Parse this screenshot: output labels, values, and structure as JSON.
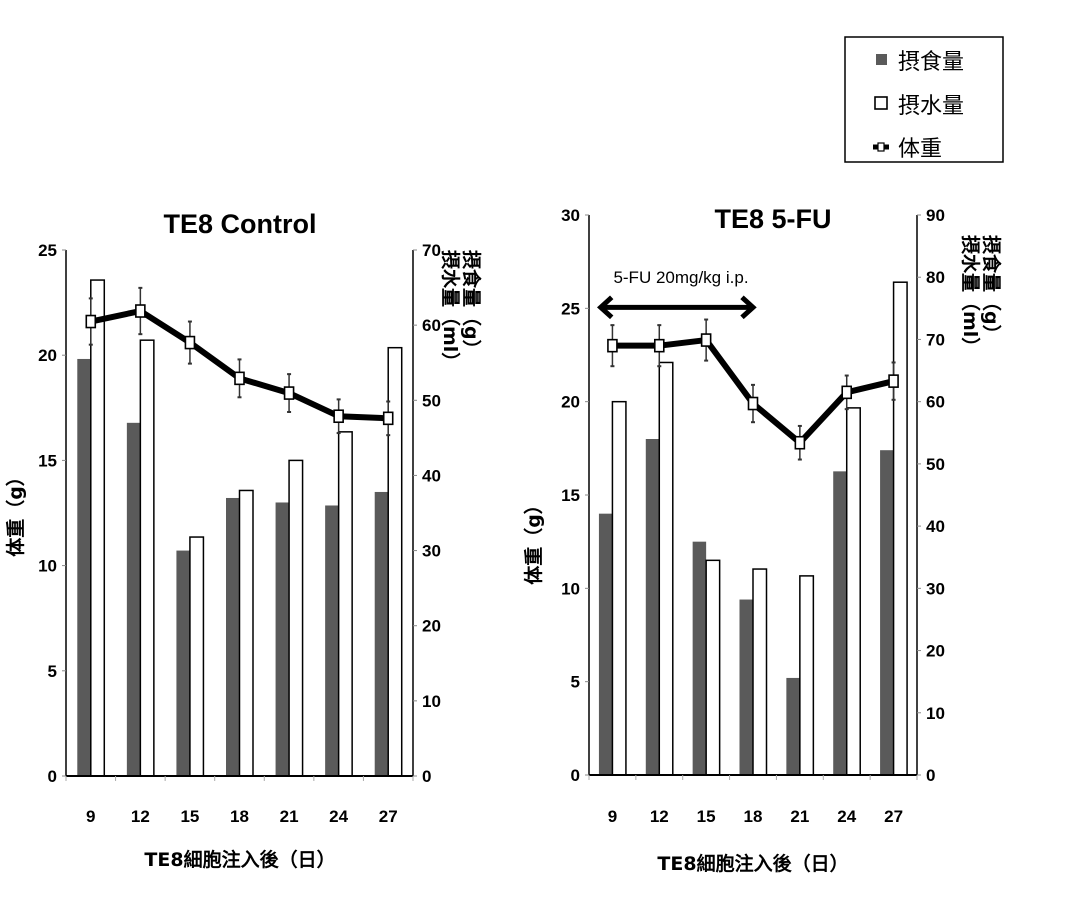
{
  "legend": {
    "items": [
      {
        "label": "摂食量",
        "marker": "filled-square",
        "color": "#5a5a5a"
      },
      {
        "label": "摂水量",
        "marker": "open-square",
        "color": "#ffffff"
      },
      {
        "label": "体重",
        "marker": "line-open-square",
        "color": "#000000"
      }
    ]
  },
  "chart_data": [
    {
      "type": "bar",
      "title": "TE8  Control",
      "xlabel": "TE8細胞注入後（日）",
      "ylabel_left": "体重（g）",
      "ylabel_right_food": "摂食量（g）",
      "ylabel_right_water": "摂水量（ml）",
      "categories": [
        "9",
        "12",
        "15",
        "18",
        "21",
        "24",
        "27"
      ],
      "ylim_left": [
        0,
        25
      ],
      "yticks_left": [
        "0",
        "5",
        "10",
        "15",
        "20",
        "25"
      ],
      "ylim_right": [
        0,
        70
      ],
      "yticks_right": [
        "0",
        "10",
        "20",
        "30",
        "40",
        "50",
        "60",
        "70"
      ],
      "grid": false,
      "series": [
        {
          "name": "摂食量",
          "kind": "bar",
          "axis": "right",
          "color": "#5a5a5a",
          "values": [
            55.5,
            47.0,
            30.0,
            37.0,
            36.4,
            36.0,
            37.8
          ]
        },
        {
          "name": "摂水量",
          "kind": "bar",
          "axis": "right",
          "color": "#ffffff",
          "values": [
            66.0,
            58.0,
            31.8,
            38.0,
            42.0,
            45.8,
            57.0
          ]
        },
        {
          "name": "体重",
          "kind": "line",
          "axis": "left",
          "color": "#000000",
          "values": [
            21.6,
            22.1,
            20.6,
            18.9,
            18.2,
            17.1,
            17.0
          ],
          "error": [
            1.1,
            1.1,
            1.0,
            0.9,
            0.9,
            0.8,
            0.8
          ]
        }
      ],
      "annotation": null
    },
    {
      "type": "bar",
      "title": "TE8   5-FU",
      "xlabel": "TE8細胞注入後（日）",
      "ylabel_left": "体重（g）",
      "ylabel_right_food": "摂食量（g）",
      "ylabel_right_water": "摂水量（ml）",
      "categories": [
        "9",
        "12",
        "15",
        "18",
        "21",
        "24",
        "27"
      ],
      "ylim_left": [
        0,
        30
      ],
      "yticks_left": [
        "0",
        "5",
        "10",
        "15",
        "20",
        "25",
        "30"
      ],
      "ylim_right": [
        0,
        90
      ],
      "yticks_right": [
        "0",
        "10",
        "20",
        "30",
        "40",
        "50",
        "60",
        "70",
        "80",
        "90"
      ],
      "grid": false,
      "series": [
        {
          "name": "摂食量",
          "kind": "bar",
          "axis": "right",
          "color": "#5a5a5a",
          "values": [
            42.0,
            54.0,
            37.5,
            28.2,
            15.6,
            48.8,
            52.2
          ]
        },
        {
          "name": "摂水量",
          "kind": "bar",
          "axis": "right",
          "color": "#ffffff",
          "values": [
            60.0,
            66.3,
            34.5,
            33.1,
            32.0,
            59.0,
            79.2
          ]
        },
        {
          "name": "体重",
          "kind": "line",
          "axis": "left",
          "color": "#000000",
          "values": [
            23.0,
            23.0,
            23.3,
            19.9,
            17.8,
            20.5,
            21.1
          ],
          "error": [
            1.1,
            1.1,
            1.1,
            1.0,
            0.9,
            0.9,
            1.0
          ]
        }
      ],
      "annotation": {
        "text": "5-FU 20mg/kg  i.p.",
        "from_day": "9",
        "to_day": "18",
        "type": "double-arrow"
      }
    }
  ]
}
